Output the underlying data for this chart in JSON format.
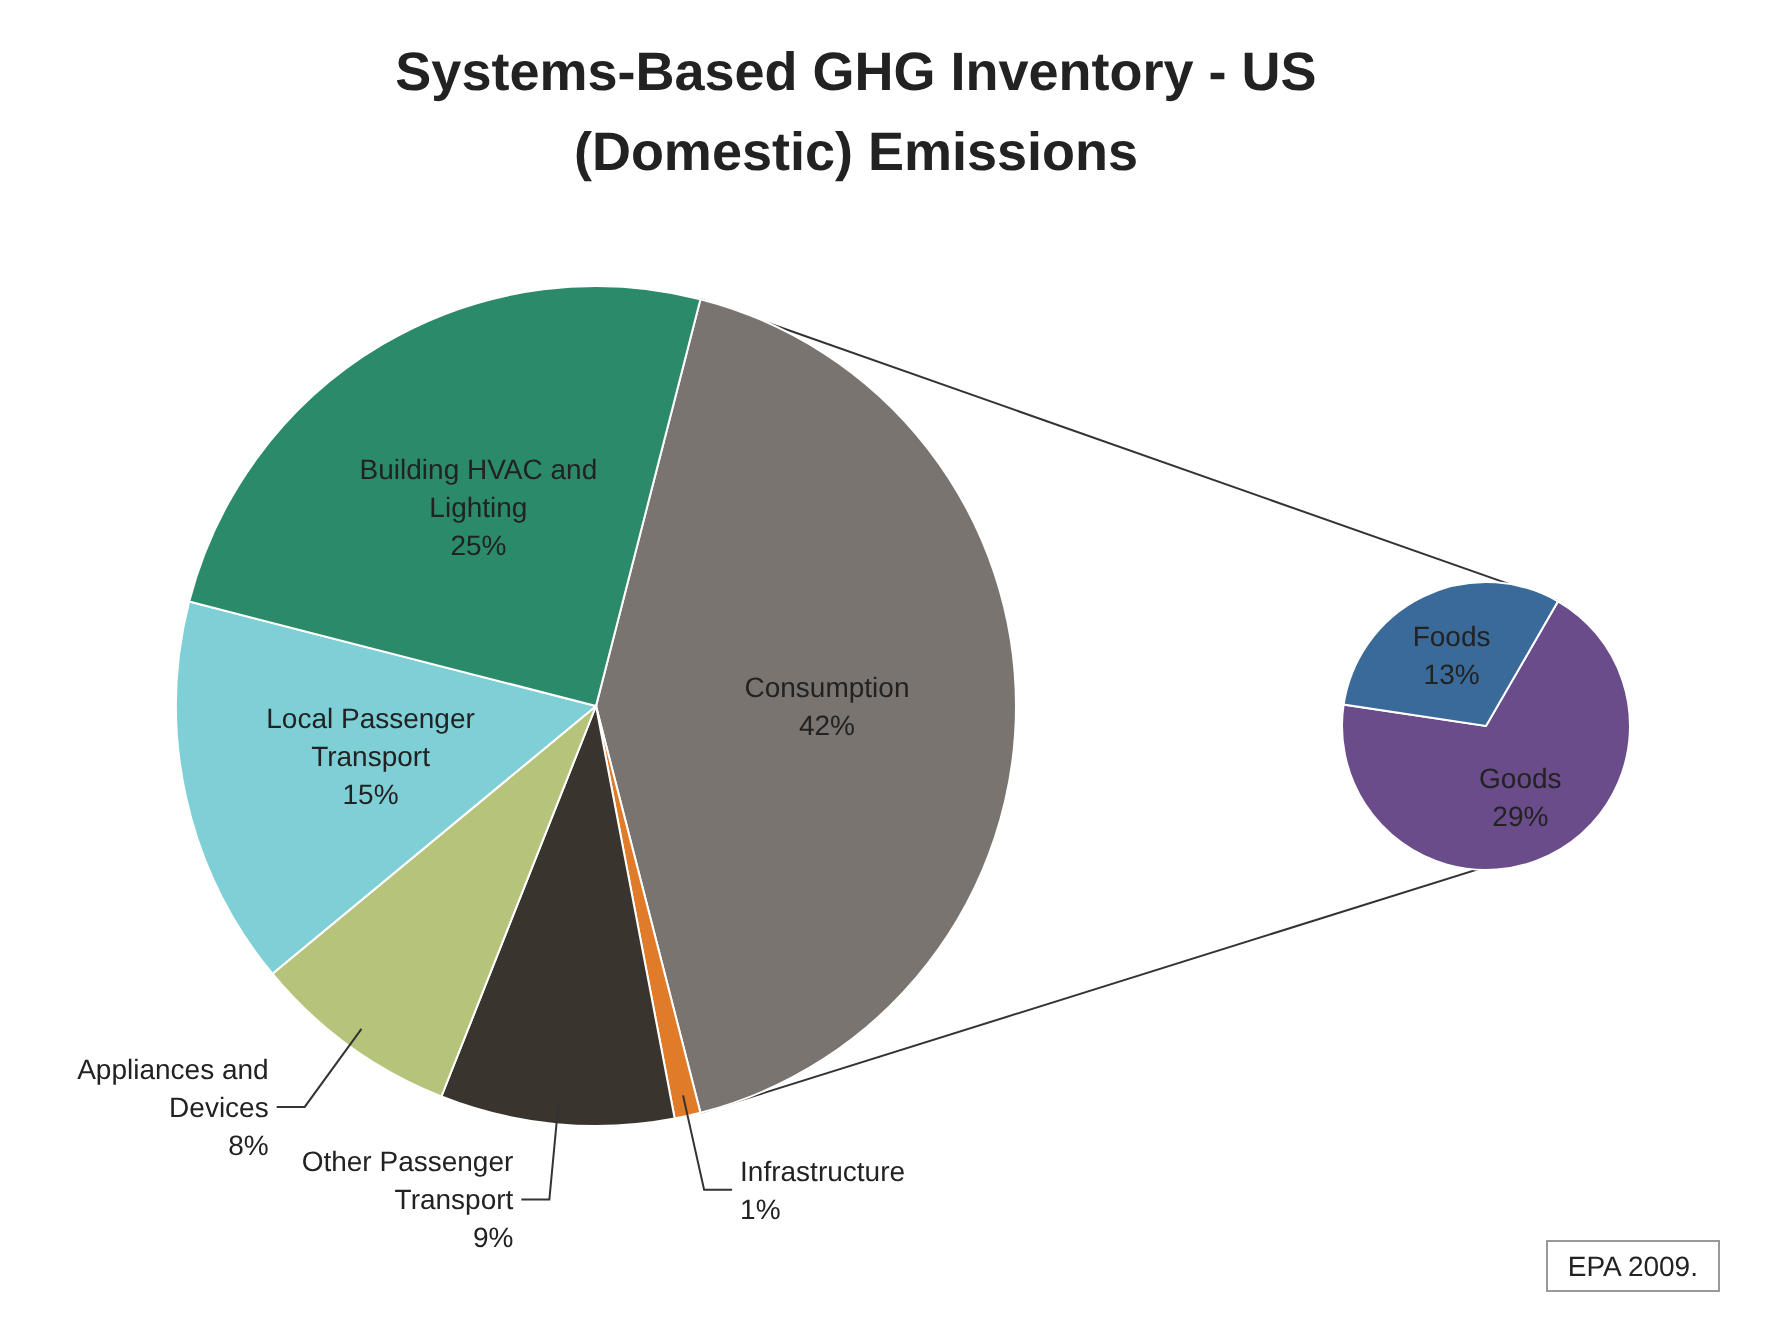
{
  "chart_data": [
    {
      "type": "pie",
      "title": "Systems-Based GHG Inventory - US (Domestic) Emissions",
      "categories": [
        "Consumption",
        "Infrastructure",
        "Other Passenger Transport",
        "Appliances and Devices",
        "Local Passenger Transport",
        "Building HVAC and Lighting"
      ],
      "values": [
        42,
        1,
        9,
        8,
        15,
        25
      ],
      "value_labels": [
        "42%",
        "1%",
        "9%",
        "8%",
        "15%",
        "25%"
      ],
      "colors": [
        "#7a7470",
        "#e07b2a",
        "#3a342e",
        "#b5c47a",
        "#7fcfd6",
        "#2b8a6a"
      ],
      "annotations": [
        "EPA 2009."
      ]
    },
    {
      "type": "pie",
      "categories": [
        "Goods",
        "Foods"
      ],
      "values": [
        29,
        13
      ],
      "value_labels": [
        "29%",
        "13%"
      ],
      "colors": [
        "#6a4c8a",
        "#3a6a9a"
      ]
    }
  ]
}
